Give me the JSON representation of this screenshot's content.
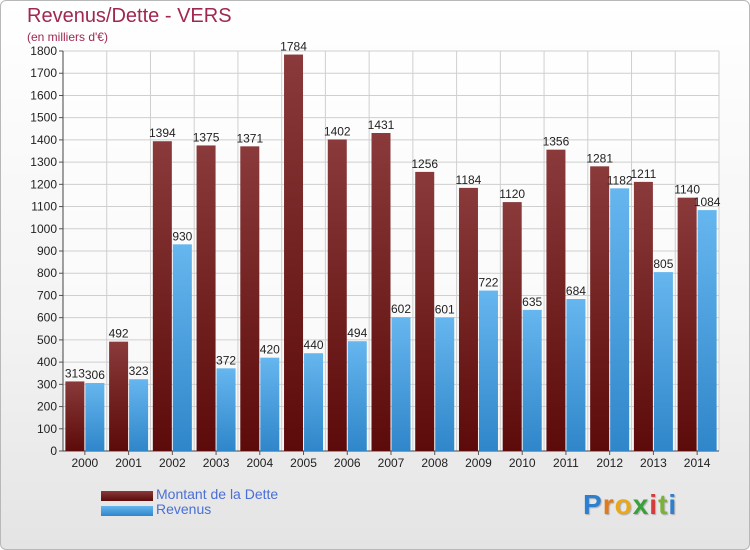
{
  "title": "Revenus/Dette - VERS",
  "subtitle": "(en milliers d'€)",
  "logo": {
    "text": "Proxiti",
    "letter_colors": [
      "#2d7fd0",
      "#e07b1a",
      "#e9a81a",
      "#3aa03a",
      "#d43c3c",
      "#7ab23a",
      "#2d7fd0"
    ]
  },
  "colors": {
    "dette_light": "#8a3a3a",
    "dette_dark": "#5c0a0a",
    "revenus_light": "#66b6ef",
    "revenus_dark": "#2f86c9",
    "title": "#a0284f",
    "legend_text": "#4a6fd6"
  },
  "chart_data": {
    "type": "bar",
    "title": "Revenus/Dette - VERS",
    "subtitle": "(en milliers d'€)",
    "categories": [
      "2000",
      "2001",
      "2002",
      "2003",
      "2004",
      "2005",
      "2006",
      "2007",
      "2008",
      "2009",
      "2010",
      "2011",
      "2012",
      "2013",
      "2014"
    ],
    "series": [
      {
        "name": "Montant de la Dette",
        "values": [
          313,
          492,
          1394,
          1375,
          1371,
          1784,
          1402,
          1431,
          1256,
          1184,
          1120,
          1356,
          1281,
          1211,
          1140
        ]
      },
      {
        "name": "Revenus",
        "values": [
          306,
          323,
          930,
          372,
          420,
          440,
          494,
          602,
          601,
          722,
          635,
          684,
          1182,
          805,
          1084
        ]
      }
    ],
    "ylim": [
      0,
      1800
    ],
    "ytick_step": 100,
    "grid": true,
    "legend_position": "bottom-left"
  }
}
